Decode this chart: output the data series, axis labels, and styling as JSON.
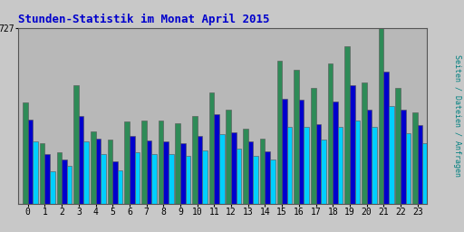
{
  "title": "Stunden-Statistik im Monat April 2015",
  "title_color": "#0000cc",
  "background_color": "#c8c8c8",
  "plot_bg_color": "#b8b8b8",
  "ylabel_right": "Seiten / Dateien / Anfragen",
  "ylabel_right_color": "#008080",
  "hours": [
    0,
    1,
    2,
    3,
    4,
    5,
    6,
    7,
    8,
    9,
    10,
    11,
    12,
    13,
    14,
    15,
    16,
    17,
    18,
    19,
    20,
    21,
    22,
    23
  ],
  "ymax": 727,
  "ytick_label": "727",
  "green_vals": [
    420,
    250,
    215,
    490,
    300,
    265,
    340,
    345,
    345,
    335,
    365,
    460,
    390,
    310,
    270,
    590,
    555,
    480,
    580,
    650,
    500,
    727,
    480,
    380
  ],
  "blue_vals": [
    350,
    205,
    185,
    365,
    270,
    178,
    282,
    263,
    258,
    250,
    280,
    370,
    295,
    258,
    218,
    435,
    432,
    330,
    425,
    490,
    388,
    548,
    388,
    328
  ],
  "cyan_vals": [
    258,
    135,
    158,
    258,
    208,
    140,
    215,
    205,
    205,
    200,
    220,
    288,
    228,
    200,
    185,
    318,
    318,
    268,
    318,
    345,
    318,
    405,
    292,
    253
  ],
  "green_color": "#2e8b57",
  "blue_color": "#0000cc",
  "cyan_color": "#00cfff",
  "border_color": "#555555",
  "grid_color": "#a8a8a8",
  "font_family": "monospace",
  "bar_width": 0.3,
  "xlim_left": -0.55,
  "xlim_right": 23.55
}
